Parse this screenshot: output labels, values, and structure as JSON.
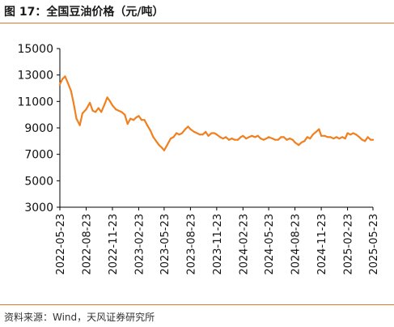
{
  "title": "图 17：全国豆油价格（元/吨）",
  "source": "资料来源：Wind，天风证券研究所",
  "colors": {
    "line": "#f08020",
    "accent": "#e8742c",
    "axis": "#000000"
  },
  "chart_data": {
    "type": "line",
    "title": "",
    "xlabel": "",
    "ylabel": "",
    "ylim": [
      3000,
      15000
    ],
    "yticks": [
      "15000",
      "13000",
      "11000",
      "9000",
      "7000",
      "5000",
      "3000"
    ],
    "xticks": [
      "2022-05-23",
      "2022-08-23",
      "2022-11-23",
      "2023-02-23",
      "2023-05-23",
      "2023-08-23",
      "2023-11-23",
      "2024-02-23",
      "2024-05-23",
      "2024-08-23",
      "2024-11-23",
      "2025-02-23",
      "2025-05-23"
    ],
    "grid": false,
    "legend": "none",
    "series": [
      {
        "name": "",
        "x": [
          "2022-05-23",
          "2022-06-01",
          "2022-06-10",
          "2022-06-20",
          "2022-07-01",
          "2022-07-10",
          "2022-07-20",
          "2022-08-01",
          "2022-08-10",
          "2022-08-23",
          "2022-09-05",
          "2022-09-15",
          "2022-09-25",
          "2022-10-05",
          "2022-10-15",
          "2022-10-25",
          "2022-11-05",
          "2022-11-15",
          "2022-11-23",
          "2022-12-05",
          "2022-12-15",
          "2022-12-25",
          "2023-01-05",
          "2023-01-15",
          "2023-01-25",
          "2023-02-05",
          "2023-02-15",
          "2023-02-23",
          "2023-03-05",
          "2023-03-15",
          "2023-03-25",
          "2023-04-05",
          "2023-04-15",
          "2023-04-25",
          "2023-05-05",
          "2023-05-15",
          "2023-05-23",
          "2023-06-05",
          "2023-06-15",
          "2023-06-25",
          "2023-07-05",
          "2023-07-15",
          "2023-07-25",
          "2023-08-05",
          "2023-08-15",
          "2023-08-23",
          "2023-09-05",
          "2023-09-15",
          "2023-09-25",
          "2023-10-05",
          "2023-10-15",
          "2023-10-25",
          "2023-11-05",
          "2023-11-15",
          "2023-11-23",
          "2023-12-05",
          "2023-12-15",
          "2023-12-25",
          "2024-01-05",
          "2024-01-15",
          "2024-01-25",
          "2024-02-05",
          "2024-02-15",
          "2024-02-23",
          "2024-03-05",
          "2024-03-15",
          "2024-03-25",
          "2024-04-05",
          "2024-04-15",
          "2024-04-25",
          "2024-05-05",
          "2024-05-15",
          "2024-05-23",
          "2024-06-05",
          "2024-06-15",
          "2024-06-25",
          "2024-07-05",
          "2024-07-15",
          "2024-07-25",
          "2024-08-05",
          "2024-08-15",
          "2024-08-23",
          "2024-09-05",
          "2024-09-15",
          "2024-09-25",
          "2024-10-05",
          "2024-10-15",
          "2024-10-25",
          "2024-11-05",
          "2024-11-15",
          "2024-11-23",
          "2024-12-05",
          "2024-12-15",
          "2024-12-25",
          "2025-01-05",
          "2025-01-15",
          "2025-01-25",
          "2025-02-05",
          "2025-02-15",
          "2025-02-23",
          "2025-03-05",
          "2025-03-15",
          "2025-03-25",
          "2025-04-05",
          "2025-04-15",
          "2025-04-25",
          "2025-05-05",
          "2025-05-15",
          "2025-05-23"
        ],
        "y": [
          12300,
          12700,
          12900,
          12400,
          11800,
          10900,
          9700,
          9200,
          10100,
          10400,
          10900,
          10300,
          10200,
          10500,
          10200,
          10700,
          11300,
          11000,
          10700,
          10400,
          10300,
          10200,
          10000,
          9300,
          9700,
          9600,
          9800,
          9900,
          9600,
          9600,
          9200,
          8800,
          8300,
          8000,
          7700,
          7500,
          7300,
          7800,
          8200,
          8300,
          8600,
          8500,
          8600,
          8900,
          9100,
          8900,
          8700,
          8600,
          8500,
          8500,
          8700,
          8400,
          8600,
          8600,
          8500,
          8300,
          8200,
          8300,
          8100,
          8200,
          8100,
          8100,
          8300,
          8400,
          8200,
          8300,
          8400,
          8300,
          8400,
          8200,
          8100,
          8200,
          8300,
          8200,
          8100,
          8100,
          8300,
          8300,
          8100,
          8200,
          8100,
          7900,
          7700,
          7900,
          8000,
          8300,
          8200,
          8500,
          8700,
          8900,
          8400,
          8400,
          8300,
          8300,
          8200,
          8300,
          8200,
          8300,
          8200,
          8600,
          8500,
          8600,
          8500,
          8300,
          8100,
          8000,
          8300,
          8100,
          8100
        ]
      }
    ]
  }
}
